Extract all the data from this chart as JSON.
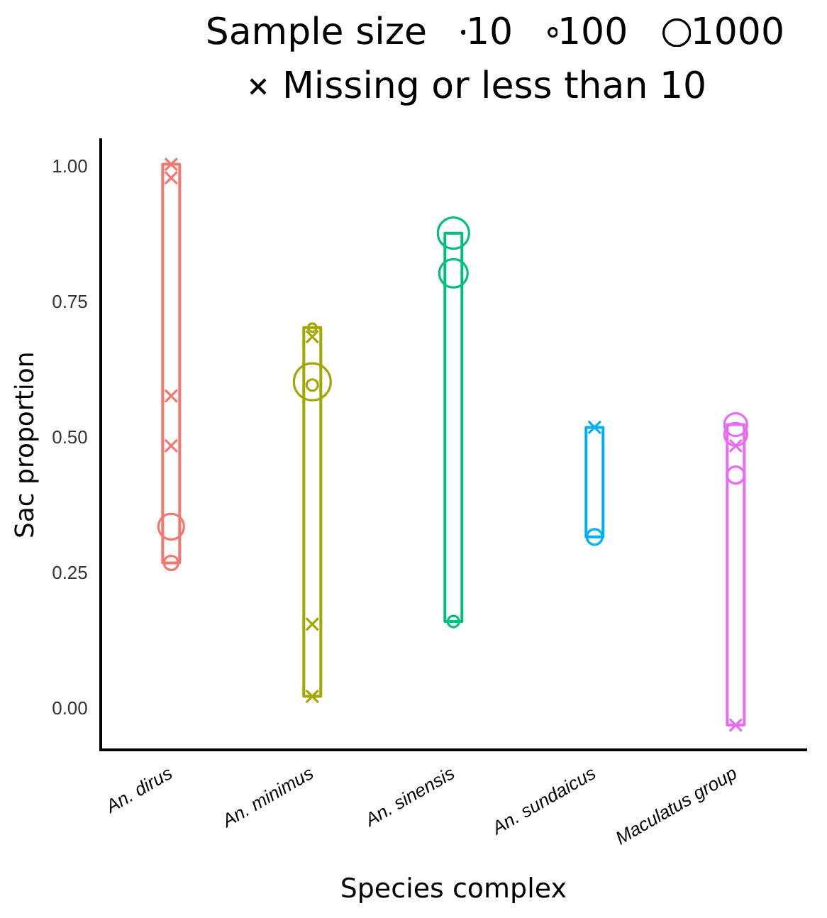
{
  "chart_data": {
    "type": "scatter",
    "xlabel": "Species complex",
    "ylabel": "Sac proportion",
    "legend_title": "Sample size",
    "size_legend": [
      10,
      100,
      1000
    ],
    "legend": "top",
    "categories": [
      "An. dirus",
      "An. minimus",
      "An. sinensis",
      "An. sundaicus",
      "Maculatus group"
    ],
    "ylim": [
      -0.075,
      1.05
    ],
    "yticks": [
      {
        "value": 0,
        "label": "0.00"
      },
      {
        "value": 0.25,
        "label": "0.25"
      },
      {
        "value": 0.5,
        "label": "0.50"
      },
      {
        "value": 0.75,
        "label": "0.75"
      },
      {
        "value": 1,
        "label": "1.00"
      }
    ],
    "grid": false,
    "series": [
      {
        "type": "bubble",
        "marker": "circle",
        "x": [
          "An. dirus",
          "An. dirus",
          "An. minimus",
          "An. minimus",
          "An. minimus",
          "An. sinensis",
          "An. sinensis",
          "An. sinensis",
          "An. sundaicus",
          "Maculatus group",
          "Maculatus group",
          "Maculatus group"
        ],
        "values": [
          0.27,
          0.337,
          0.704,
          0.604,
          0.598,
          0.878,
          0.804,
          0.162,
          0.318,
          0.507,
          0.525,
          0.432
        ],
        "sizes": [
          290,
          940,
          100,
          1950,
          185,
          1400,
          1150,
          185,
          350,
          740,
          740,
          420
        ],
        "colors": [
          "#f8766d",
          "#f8766d",
          "#a3a500",
          "#a3a500",
          "#a3a500",
          "#00bf7d",
          "#00bf7d",
          "#00bf7d",
          "#00b0f6",
          "#e76bf3",
          "#e76bf3",
          "#e76bf3"
        ]
      },
      {
        "type": "scatter",
        "marker": "cross",
        "name": "Missing or less than 10",
        "x": [
          "An. dirus",
          "An. dirus",
          "An. dirus",
          "An. dirus",
          "An. minimus",
          "An. minimus",
          "An. minimus",
          "An. sundaicus",
          "Maculatus group",
          "Maculatus group"
        ],
        "values": [
          1.005,
          0.98,
          0.578,
          0.486,
          0.687,
          0.157,
          0.024,
          0.52,
          0.486,
          -0.029
        ],
        "colors": [
          "#f8766d",
          "#f8766d",
          "#f8766d",
          "#f8766d",
          "#a3a500",
          "#a3a500",
          "#a3a500",
          "#00b0f6",
          "#e76bf3",
          "#e76bf3"
        ]
      }
    ]
  }
}
